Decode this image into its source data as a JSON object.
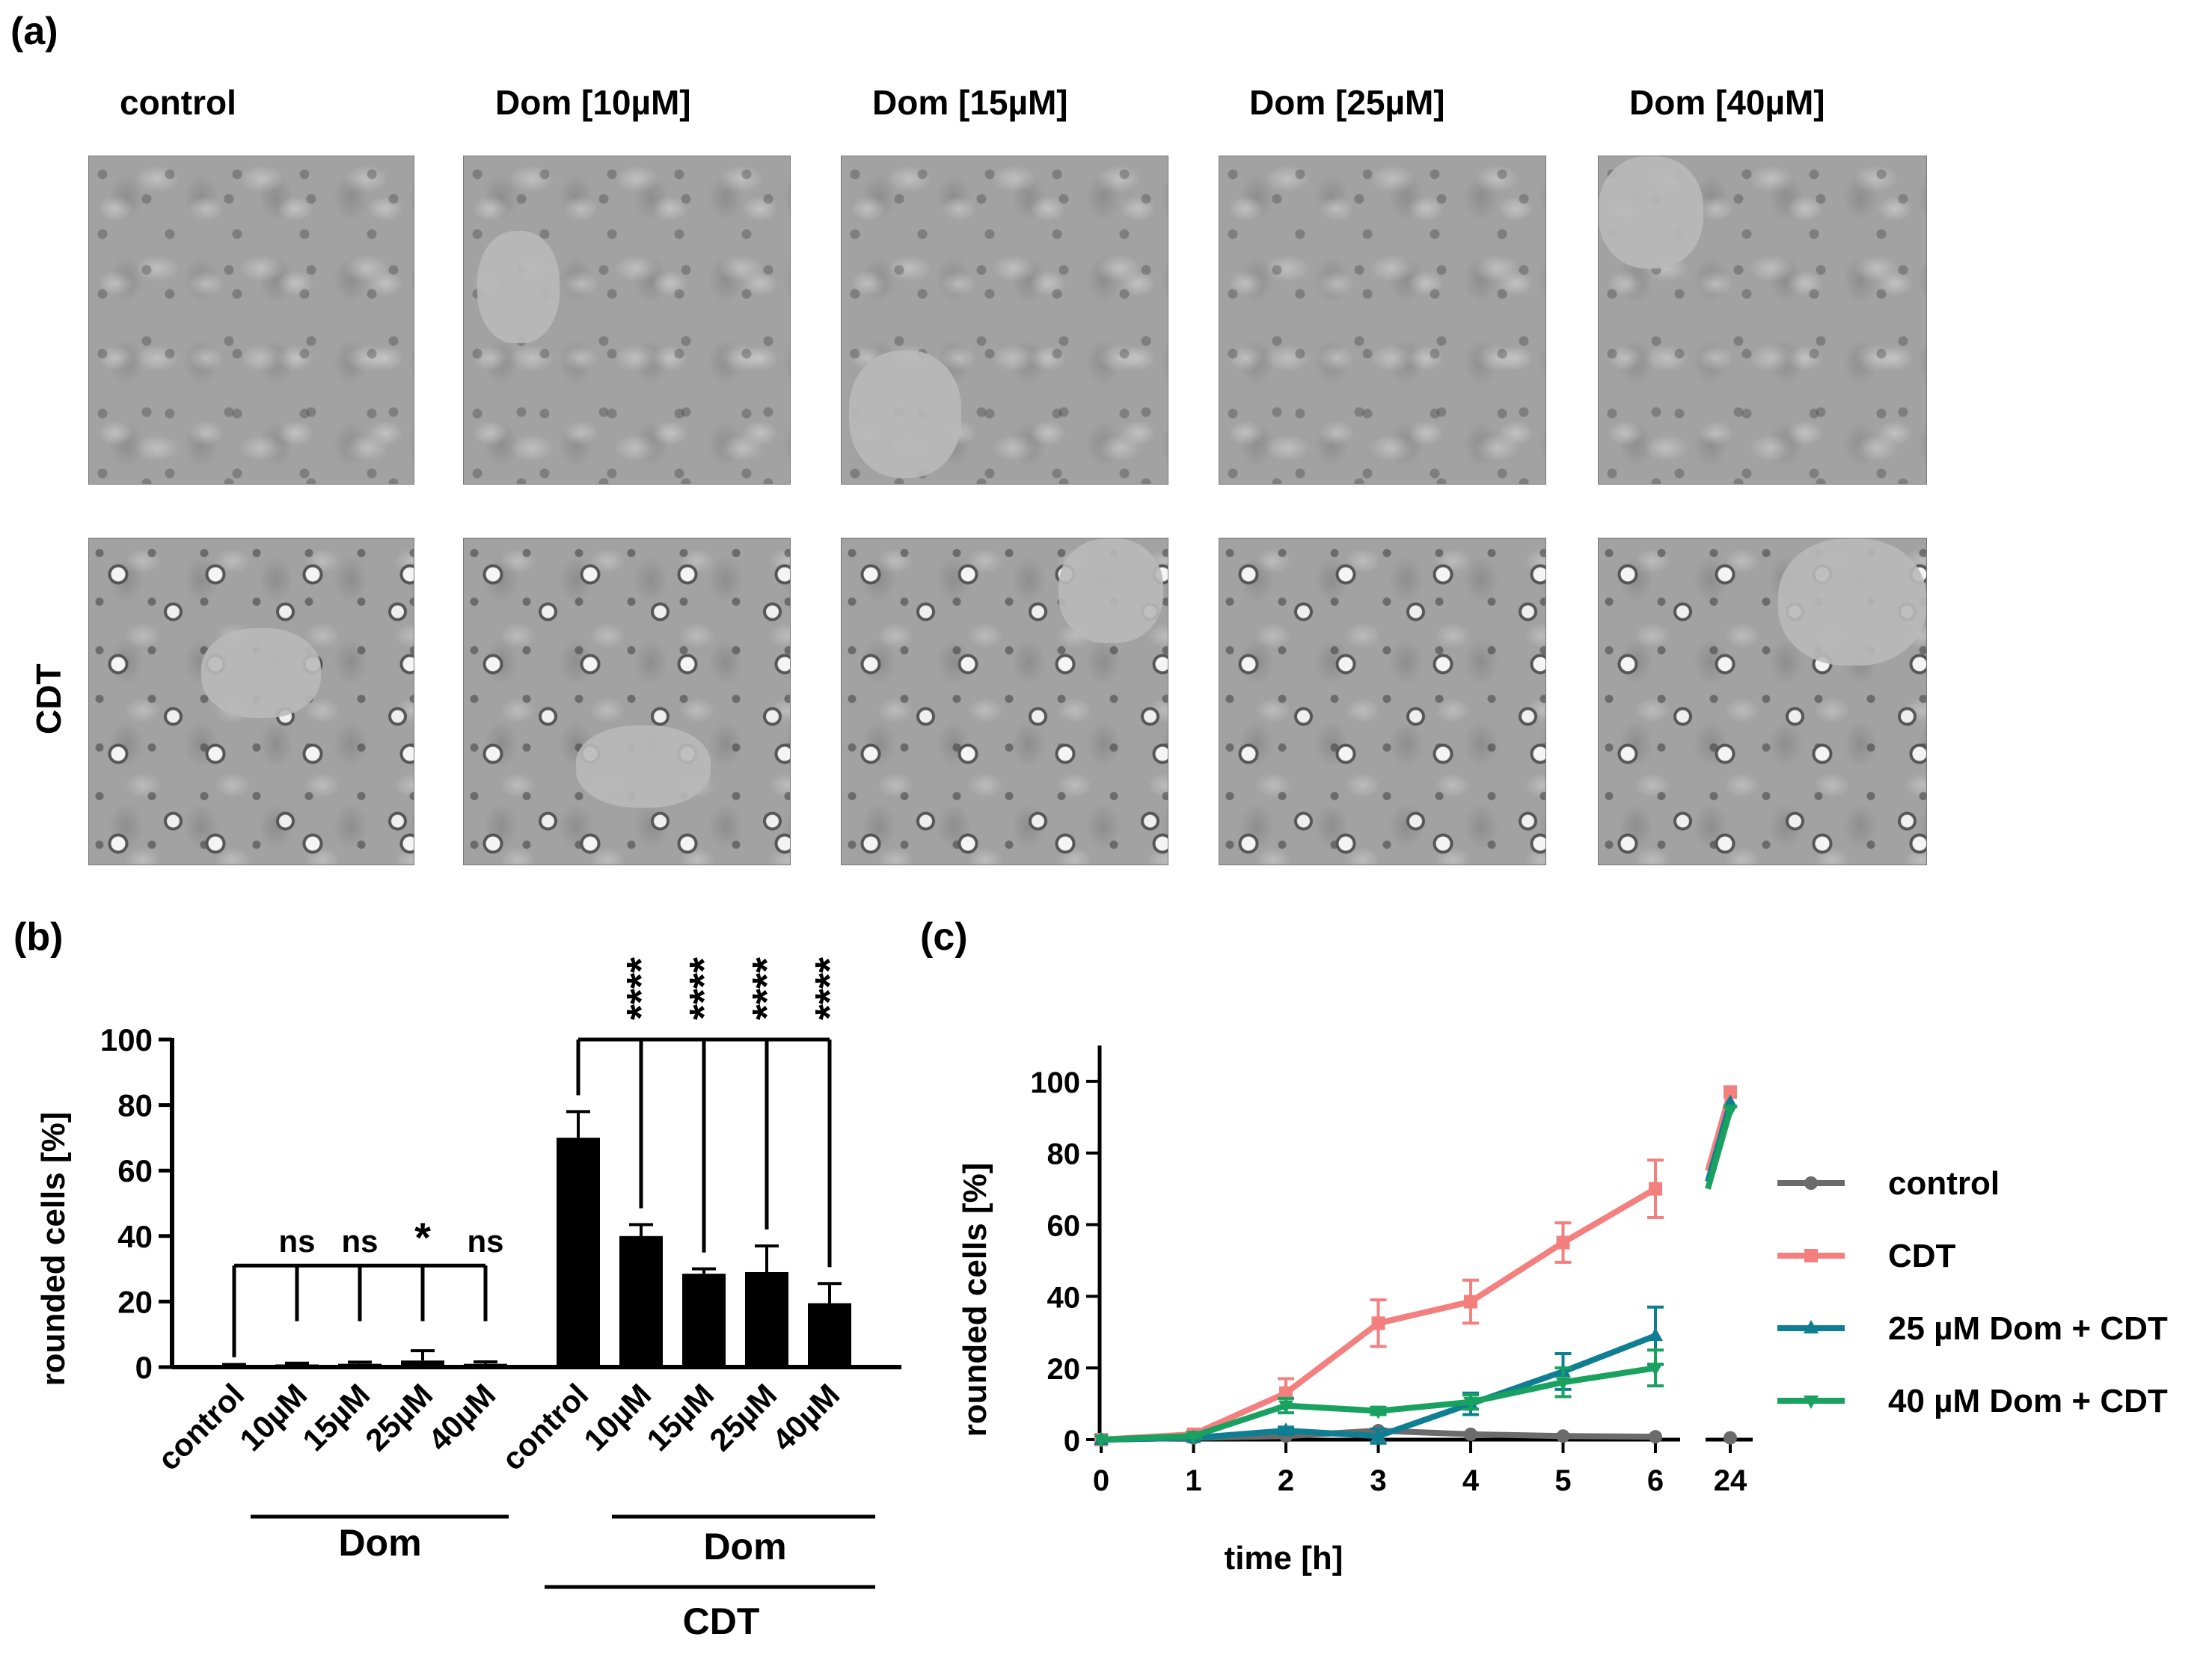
{
  "panel_a": {
    "label": "(a)",
    "columns": [
      "control",
      "Dom [10µM]",
      "Dom [15µM]",
      "Dom [25µM]",
      "Dom [40µM]"
    ],
    "row_labels": [
      "",
      "CDT"
    ]
  },
  "chart_data": [
    {
      "panel": "(b)",
      "type": "bar",
      "ylabel": "rounded cells [%]",
      "ylim": [
        0,
        100
      ],
      "yticks": [
        0,
        20,
        40,
        60,
        80,
        100
      ],
      "groups": [
        {
          "categories": [
            "control",
            "10µM",
            "15µM",
            "25µM",
            "40µM"
          ],
          "values": [
            0.5,
            0.8,
            1.0,
            2.0,
            1.0
          ],
          "errors": [
            0.3,
            0.4,
            0.5,
            3.0,
            0.6
          ],
          "significance": [
            "",
            "ns",
            "ns",
            "*",
            "ns"
          ],
          "dom_label": "Dom",
          "treatment_label": ""
        },
        {
          "categories": [
            "control",
            "10µM",
            "15µM",
            "25µM",
            "40µM"
          ],
          "values": [
            70,
            40,
            28.5,
            29,
            19.5
          ],
          "errors": [
            8,
            3.5,
            1.5,
            8,
            6
          ],
          "significance": [
            "",
            "****",
            "****",
            "****",
            "****"
          ],
          "dom_label": "Dom",
          "treatment_label": "CDT"
        }
      ],
      "colors": {
        "ctrl_group": "#000000",
        "cdt_group": "#000000"
      }
    },
    {
      "panel": "(c)",
      "type": "line",
      "xlabel": "time [h]",
      "ylabel": "rounded cells [%]",
      "ylim": [
        0,
        110
      ],
      "yticks": [
        0,
        20,
        40,
        60,
        80,
        100
      ],
      "x": [
        0,
        1,
        2,
        3,
        4,
        5,
        6
      ],
      "x_break": 24,
      "xtick_labels": [
        "0",
        "1",
        "2",
        "3",
        "4",
        "5",
        "6",
        "24"
      ],
      "series": [
        {
          "name": "control",
          "color": "#6b6b6b",
          "marker": "circle",
          "values": [
            0,
            0.5,
            1,
            2.5,
            1.5,
            1,
            0.8
          ],
          "errors": [
            0,
            0,
            0,
            0,
            0,
            0,
            0
          ],
          "value_24": 0.5
        },
        {
          "name": "CDT",
          "color": "#f47f7f",
          "marker": "square",
          "values": [
            0,
            1.5,
            13,
            32.5,
            38.5,
            55,
            70
          ],
          "errors": [
            0,
            0.5,
            4,
            6.5,
            6,
            5.5,
            8
          ],
          "value_24": 97
        },
        {
          "name": "25 µM Dom + CDT",
          "color": "#0e7f92",
          "marker": "triangle-up",
          "values": [
            0,
            0.5,
            2.5,
            1,
            10,
            19,
            29
          ],
          "errors": [
            0,
            0,
            1,
            2,
            3,
            5,
            8
          ],
          "value_24": 94
        },
        {
          "name": "40 µM Dom + CDT",
          "color": "#18a15f",
          "marker": "triangle-down",
          "values": [
            0,
            1,
            9.5,
            8,
            10.5,
            16,
            20
          ],
          "errors": [
            0,
            0.5,
            2,
            1,
            2,
            4,
            5
          ],
          "value_24": 92
        }
      ]
    }
  ]
}
